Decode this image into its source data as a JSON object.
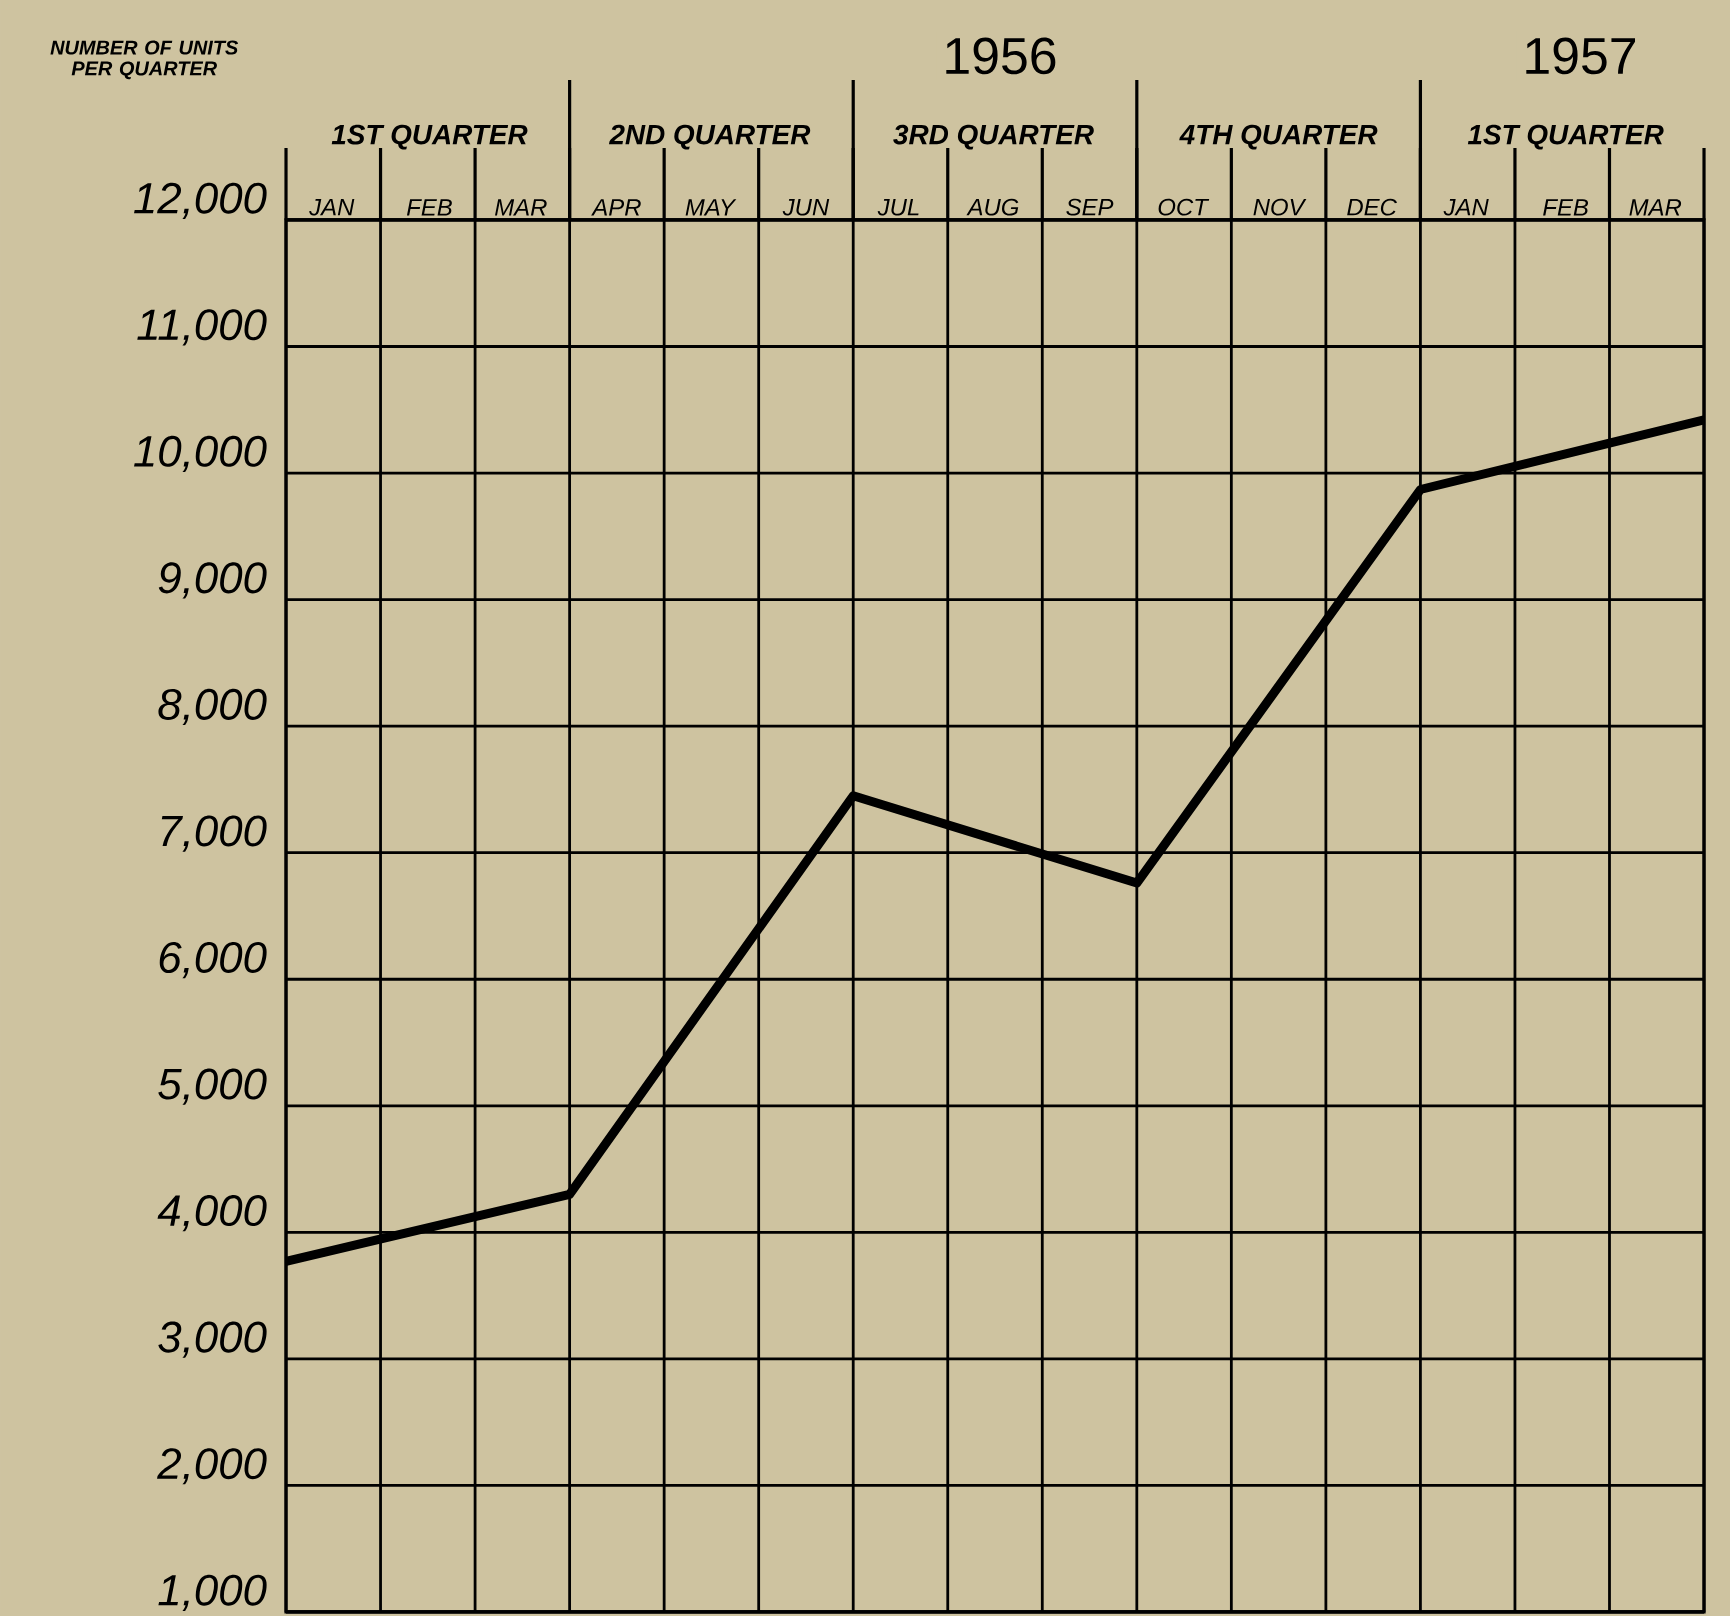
{
  "chart_data": {
    "type": "line",
    "ylabel": "NUMBER OF UNITS PER QUARTER",
    "x": [
      "1956-01",
      "1956-04",
      "1956-07",
      "1956-10",
      "1957-01",
      "1957-04"
    ],
    "values": [
      3770,
      4300,
      7450,
      6760,
      9870,
      10420
    ],
    "color": "#000000",
    "xlim": [
      "1956-01",
      "1957-04"
    ],
    "xticks": [
      {
        "value": "1956-01",
        "label": null
      },
      {
        "value": "1956-01-16",
        "label": "JAN"
      },
      {
        "value": "1956-02",
        "label": null
      },
      {
        "value": "1956-02-16",
        "label": "FEB"
      },
      {
        "value": "1956-03",
        "label": null
      },
      {
        "value": "1956-03-16",
        "label": "MAR"
      },
      {
        "value": "1956-04",
        "label": null
      },
      {
        "value": "1956-04-16",
        "label": "APR"
      },
      {
        "value": "1956-05",
        "label": null
      },
      {
        "value": "1956-05-16",
        "label": "MAY"
      },
      {
        "value": "1956-06",
        "label": null
      },
      {
        "value": "1956-06-16",
        "label": "JUN"
      },
      {
        "value": "1956-07",
        "label": null
      },
      {
        "value": "1956-07-16",
        "label": "JUL"
      },
      {
        "value": "1956-08",
        "label": null
      },
      {
        "value": "1956-08-16",
        "label": "AUG"
      },
      {
        "value": "1956-09",
        "label": null
      },
      {
        "value": "1956-09-16",
        "label": "SEP"
      },
      {
        "value": "1956-10",
        "label": null
      },
      {
        "value": "1956-10-16",
        "label": "OCT"
      },
      {
        "value": "1956-11",
        "label": null
      },
      {
        "value": "1956-11-16",
        "label": "NOV"
      },
      {
        "value": "1956-12",
        "label": null
      },
      {
        "value": "1956-12-16",
        "label": "DEC"
      },
      {
        "value": "1957-01",
        "label": null
      },
      {
        "value": "1957-01-16",
        "label": "JAN"
      },
      {
        "value": "1957-02",
        "label": null
      },
      {
        "value": "1957-02-16",
        "label": "FEB"
      },
      {
        "value": "1957-03",
        "label": null
      },
      {
        "value": "1957-03-16",
        "label": "MAR"
      },
      {
        "value": "1957-04",
        "label": null
      }
    ],
    "x2lim": [
      "1956-01",
      "1957-04"
    ],
    "x2ticks": [
      {
        "value": "1956-02-16",
        "label": "1ST QUARTER"
      },
      {
        "value": "1956-04",
        "label": null
      },
      {
        "value": "1956-05-16",
        "label": "2ND QUARTER"
      },
      {
        "value": "1956-07",
        "label": null
      },
      {
        "value": "1956-08-16",
        "label": "3RD QUARTER"
      },
      {
        "value": "1956-10",
        "label": null
      },
      {
        "value": "1956-11-16",
        "label": "4TH QUARTER"
      },
      {
        "value": "1957-01",
        "label": null
      },
      {
        "value": "1957-02-16",
        "label": "1ST QUARTER"
      }
    ],
    "annotations": [
      "1956",
      "1957"
    ],
    "ylim": [
      1000,
      12000
    ],
    "yticks": [
      {
        "value": 1000,
        "label": "1,000"
      },
      {
        "value": 2000,
        "label": "2,000"
      },
      {
        "value": 3000,
        "label": "3,000"
      },
      {
        "value": 4000,
        "label": "4,000"
      },
      {
        "value": 5000,
        "label": "5,000"
      },
      {
        "value": 6000,
        "label": "6,000"
      },
      {
        "value": 7000,
        "label": "7,000"
      },
      {
        "value": 8000,
        "label": "8,000"
      },
      {
        "value": 9000,
        "label": "9,000"
      },
      {
        "value": 10000,
        "label": "10,000"
      },
      {
        "value": 11000,
        "label": "11,000"
      },
      {
        "value": 12000,
        "label": "12,000"
      }
    ],
    "grid": true
  }
}
